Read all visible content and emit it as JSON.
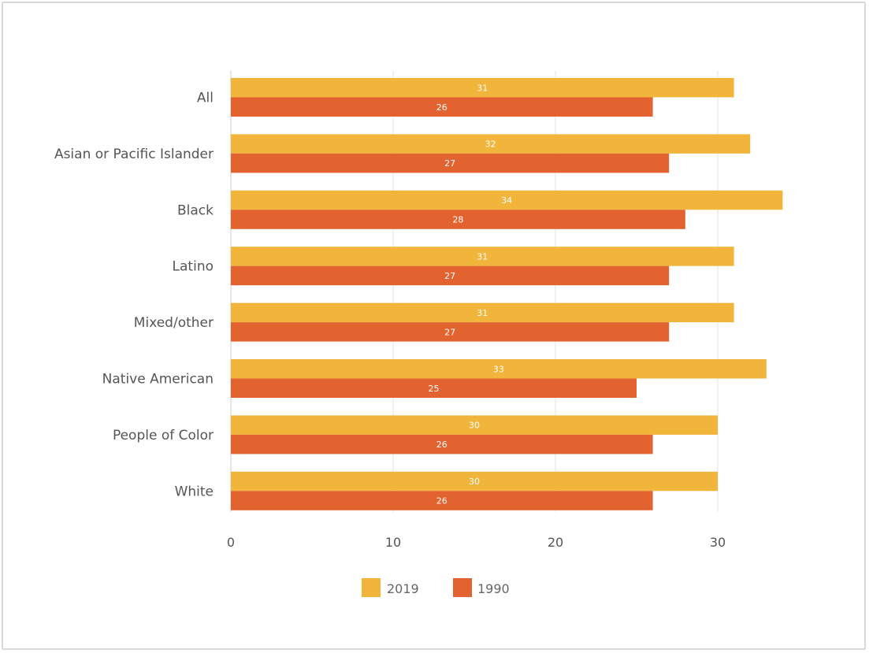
{
  "chart_data": {
    "type": "bar",
    "orientation": "horizontal",
    "categories": [
      "All",
      "Asian or Pacific Islander",
      "Black",
      "Latino",
      "Mixed/other",
      "Native American",
      "People of Color",
      "White"
    ],
    "series": [
      {
        "name": "2019",
        "color": "#F2B53C",
        "values": [
          31,
          32,
          34,
          31,
          31,
          33,
          30,
          30
        ]
      },
      {
        "name": "1990",
        "color": "#E2632F",
        "values": [
          26,
          27,
          28,
          27,
          27,
          25,
          26,
          26
        ]
      }
    ],
    "xlim": [
      0,
      35
    ],
    "x_ticks": [
      0,
      10,
      20,
      30
    ],
    "grid": true,
    "legend_position": "bottom",
    "data_labels": true
  }
}
